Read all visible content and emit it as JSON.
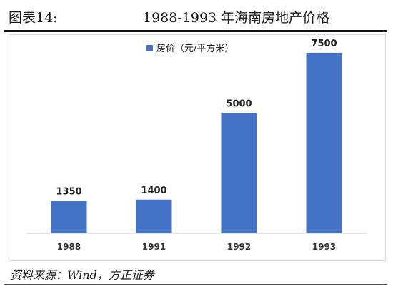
{
  "header": {
    "figure_label": "图表14:",
    "title": "1988-1993 年海南房地产价格"
  },
  "chart_data": {
    "type": "bar",
    "categories": [
      "1988",
      "1991",
      "1992",
      "1993"
    ],
    "series": [
      {
        "name": "房价（元/平方米）",
        "values": [
          1350,
          1400,
          5000,
          7500
        ],
        "color": "#4472c4"
      }
    ],
    "data_labels": [
      "1350",
      "1400",
      "5000",
      "7500"
    ],
    "ylim": [
      0,
      8000
    ],
    "legend_position": "top-left",
    "grid": false
  },
  "footer": {
    "source": "资料来源：Wind，方正证券"
  }
}
